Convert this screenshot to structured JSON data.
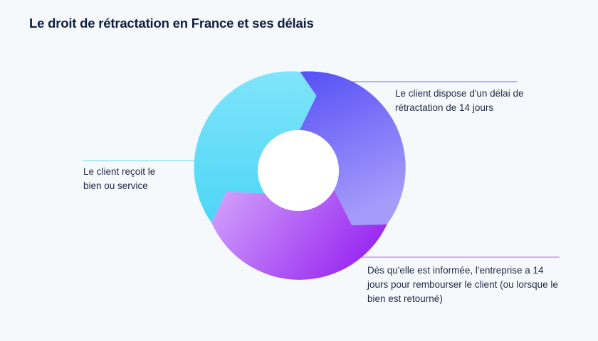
{
  "title": "Le droit de rétractation en France et ses délais",
  "steps": [
    {
      "text": "Le client reçoit le bien ou service",
      "color_start": "#6ee0fb",
      "color_end": "#4fd8f6"
    },
    {
      "text": "Le client dispose d'un délai de rétractation de 14 jours",
      "color_start": "#5a55f7",
      "color_end": "#9a8cfb"
    },
    {
      "text": "Dès qu'elle est informée, l'entreprise a 14 jours pour rembourser le client (ou lorsque le bien est retourné)",
      "color_start": "#cc9bfb",
      "color_end": "#a032f2"
    }
  ],
  "colors": {
    "background": "#f5f9fc",
    "title": "#0f1f3d",
    "text": "#1f2a44"
  }
}
